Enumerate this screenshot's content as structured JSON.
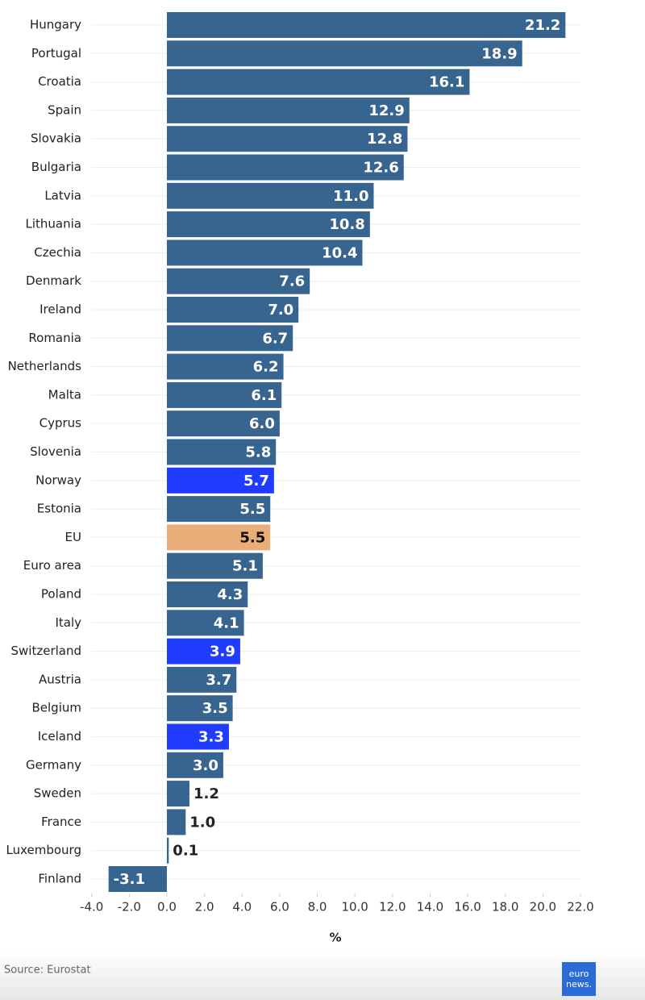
{
  "chart_data": {
    "type": "hbar",
    "categories": [
      "Hungary",
      "Portugal",
      "Croatia",
      "Spain",
      "Slovakia",
      "Bulgaria",
      "Latvia",
      "Lithuania",
      "Czechia",
      "Denmark",
      "Ireland",
      "Romania",
      "Netherlands",
      "Malta",
      "Cyprus",
      "Slovenia",
      "Norway",
      "Estonia",
      "EU",
      "Euro area",
      "Poland",
      "Italy",
      "Switzerland",
      "Austria",
      "Belgium",
      "Iceland",
      "Germany",
      "Sweden",
      "France",
      "Luxembourg",
      "Finland"
    ],
    "values": [
      21.2,
      18.9,
      16.1,
      12.9,
      12.8,
      12.6,
      11.0,
      10.8,
      10.4,
      7.6,
      7.0,
      6.7,
      6.2,
      6.1,
      6.0,
      5.8,
      5.7,
      5.5,
      5.5,
      5.1,
      4.3,
      4.1,
      3.9,
      3.7,
      3.5,
      3.3,
      3.0,
      1.2,
      1.0,
      0.1,
      -3.1
    ],
    "value_labels": [
      "21.2",
      "18.9",
      "16.1",
      "12.9",
      "12.8",
      "12.6",
      "11.0",
      "10.8",
      "10.4",
      "7.6",
      "7.0",
      "6.7",
      "6.2",
      "6.1",
      "6.0",
      "5.8",
      "5.7",
      "5.5",
      "5.5",
      "5.1",
      "4.3",
      "4.1",
      "3.9",
      "3.7",
      "3.5",
      "3.3",
      "3.0",
      "1.2",
      "1.0",
      "0.1",
      "-3.1"
    ],
    "colors": [
      "#386590",
      "#386590",
      "#386590",
      "#386590",
      "#386590",
      "#386590",
      "#386590",
      "#386590",
      "#386590",
      "#386590",
      "#386590",
      "#386590",
      "#386590",
      "#386590",
      "#386590",
      "#386590",
      "#1f3cff",
      "#386590",
      "#e8ad78",
      "#386590",
      "#386590",
      "#386590",
      "#1f3cff",
      "#386590",
      "#386590",
      "#1f3cff",
      "#386590",
      "#386590",
      "#386590",
      "#386590",
      "#386590"
    ],
    "xlabel": "%",
    "xlim": [
      -4,
      22
    ],
    "xticks": [
      {
        "value": -4,
        "label": "-4.0"
      },
      {
        "value": -2,
        "label": "-2.0"
      },
      {
        "value": 0,
        "label": "0.0"
      },
      {
        "value": 2,
        "label": "2.0"
      },
      {
        "value": 4,
        "label": "4.0"
      },
      {
        "value": 6,
        "label": "6.0"
      },
      {
        "value": 8,
        "label": "8.0"
      },
      {
        "value": 10,
        "label": "10.0"
      },
      {
        "value": 12,
        "label": "12.0"
      },
      {
        "value": 14,
        "label": "14.0"
      },
      {
        "value": 16,
        "label": "16.0"
      },
      {
        "value": 18,
        "label": "18.0"
      },
      {
        "value": 20,
        "label": "20.0"
      },
      {
        "value": 22,
        "label": "22.0"
      }
    ],
    "grid": true,
    "source": "Source: Eurostat",
    "logo": [
      "euro",
      "news."
    ]
  }
}
